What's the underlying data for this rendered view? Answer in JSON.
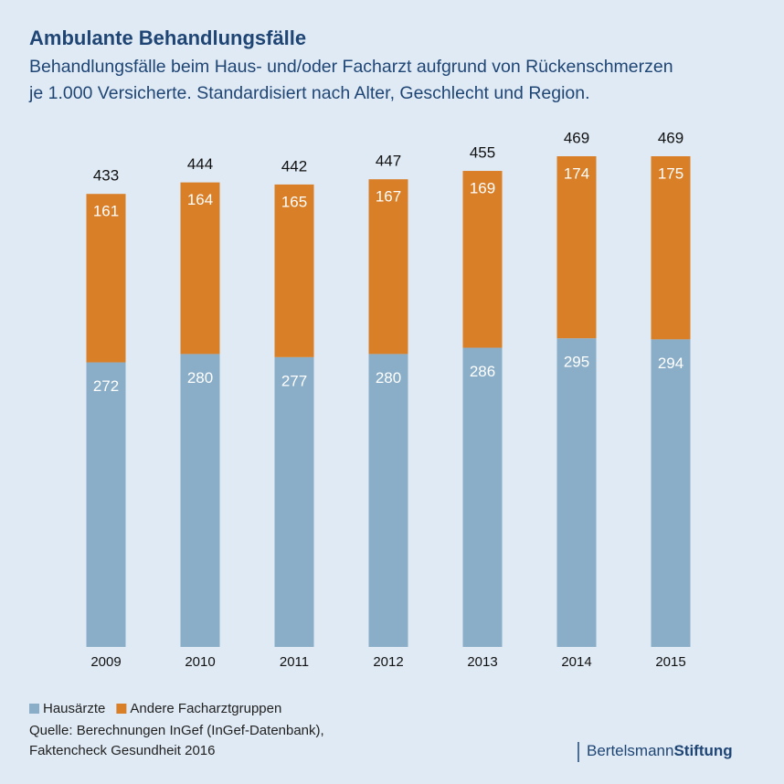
{
  "chart_data": {
    "type": "stacked_bar",
    "title": "Ambulante Behandlungsfälle",
    "subtitle": [
      "Behandlungsfälle beim Haus- und/oder Facharzt aufgrund von Rückenschmerzen",
      "je 1.000 Versicherte. Standardisiert nach Alter, Geschlecht und Region."
    ],
    "categories": [
      "2009",
      "2010",
      "2011",
      "2012",
      "2013",
      "2014",
      "2015"
    ],
    "series": [
      {
        "name": "Hausärzte",
        "color": "#8aaec8",
        "values": [
          272,
          280,
          277,
          280,
          286,
          295,
          294
        ]
      },
      {
        "name": "Andere Facharztgruppen",
        "color": "#d97f28",
        "values": [
          161,
          164,
          165,
          167,
          169,
          174,
          175
        ]
      }
    ],
    "totals": [
      433,
      444,
      442,
      447,
      455,
      469,
      469
    ],
    "source": [
      "Quelle: Berechnungen InGef (InGef-Datenbank),",
      "Faktencheck Gesundheit 2016"
    ],
    "logo": [
      "Bertelsmann",
      "Stiftung"
    ]
  }
}
